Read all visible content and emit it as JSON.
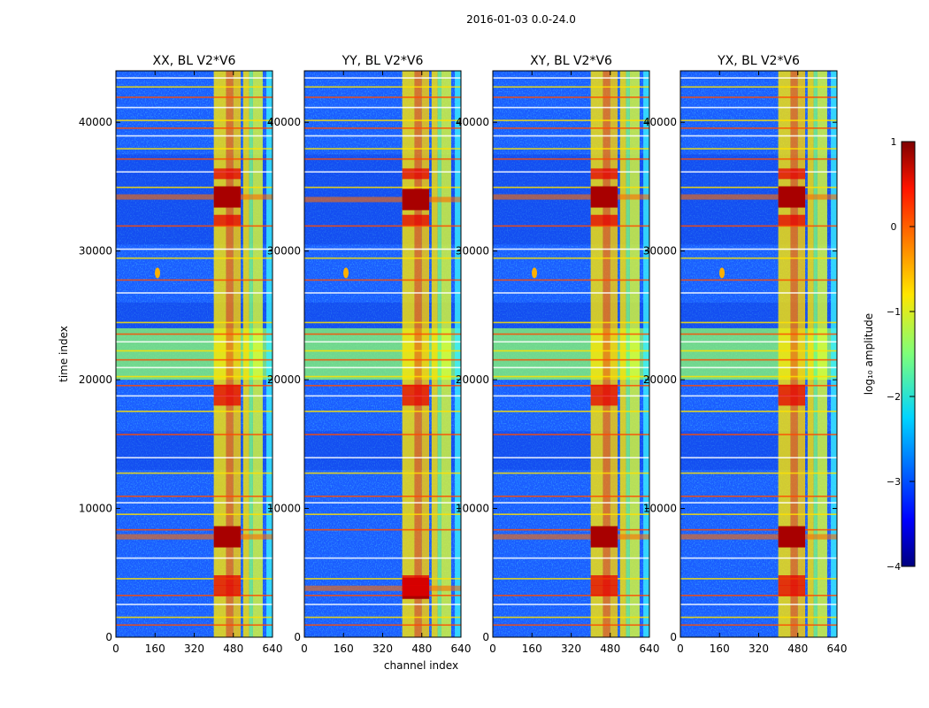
{
  "figure": {
    "title": "2016-01-03 0.0-24.0"
  },
  "chart_data": {
    "type": "heatmap",
    "title": "2016-01-03 0.0-24.0",
    "xlabel": "channel index",
    "ylabel": "time index",
    "xlim": [
      0,
      640
    ],
    "ylim": [
      0,
      44000
    ],
    "xticks": [
      "0",
      "160",
      "320",
      "480",
      "640"
    ],
    "yticks": [
      "0",
      "10000",
      "20000",
      "30000",
      "40000"
    ],
    "panels": [
      {
        "title": "XX, BL V2*V6",
        "hot_rows": [
          7800,
          34200
        ],
        "hot_blob_x": 170
      },
      {
        "title": "YY, BL V2*V6",
        "hot_rows": [
          3800,
          34000
        ],
        "hot_blob_x": 170
      },
      {
        "title": "XY, BL V2*V6",
        "hot_rows": [
          7800,
          34200
        ],
        "hot_blob_x": 170
      },
      {
        "title": "YX, BL V2*V6",
        "hot_rows": [
          7800,
          34200
        ],
        "hot_blob_x": 170
      }
    ],
    "colorbar": {
      "label": "log₁₀ amplitude",
      "range": [
        -4,
        1
      ],
      "ticks": [
        "1",
        "0",
        "−1",
        "−2",
        "−3",
        "−4"
      ],
      "colormap": "jet"
    }
  }
}
